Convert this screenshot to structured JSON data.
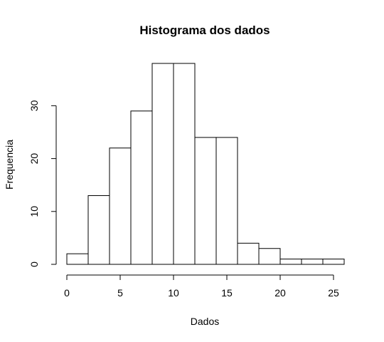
{
  "chart_data": {
    "type": "bar",
    "title": "Histograma dos dados",
    "xlabel": "Dados",
    "ylabel": "Frequencia",
    "bins": [
      {
        "start": 0,
        "end": 2,
        "count": 2
      },
      {
        "start": 2,
        "end": 4,
        "count": 13
      },
      {
        "start": 4,
        "end": 6,
        "count": 22
      },
      {
        "start": 6,
        "end": 8,
        "count": 29
      },
      {
        "start": 8,
        "end": 10,
        "count": 38
      },
      {
        "start": 10,
        "end": 12,
        "count": 38
      },
      {
        "start": 12,
        "end": 14,
        "count": 24
      },
      {
        "start": 14,
        "end": 16,
        "count": 24
      },
      {
        "start": 16,
        "end": 18,
        "count": 4
      },
      {
        "start": 18,
        "end": 20,
        "count": 3
      },
      {
        "start": 20,
        "end": 22,
        "count": 1
      },
      {
        "start": 22,
        "end": 24,
        "count": 1
      },
      {
        "start": 24,
        "end": 26,
        "count": 1
      }
    ],
    "xlim": [
      0,
      26
    ],
    "ylim": [
      0,
      38
    ],
    "xticks": [
      0,
      5,
      10,
      15,
      20,
      25
    ],
    "yticks": [
      0,
      10,
      20,
      30
    ],
    "grid": false,
    "legend": "none",
    "colors": {
      "bar_fill": "#ffffff",
      "bar_stroke": "#000000"
    }
  }
}
